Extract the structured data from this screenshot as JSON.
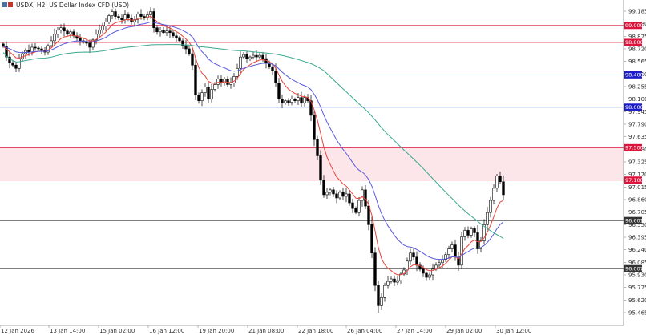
{
  "header": {
    "symbol_title": "USDX, H2:  US Dollar Index CFD (USD)"
  },
  "chart_data": {
    "type": "candlestick",
    "symbol": "USDX",
    "timeframe": "H2",
    "description": "US Dollar Index CFD (USD)",
    "ylim": [
      95.36,
      99.25
    ],
    "y_ticks": [
      "99.185",
      "99.030",
      "98.875",
      "98.720",
      "98.565",
      "98.410",
      "98.255",
      "98.100",
      "97.945",
      "97.790",
      "97.635",
      "97.480",
      "97.325",
      "97.170",
      "97.015",
      "96.860",
      "96.705",
      "96.550",
      "96.395",
      "96.240",
      "96.085",
      "95.930",
      "95.775",
      "95.620",
      "95.465"
    ],
    "x_ticks": [
      "12 Jan 2026",
      "13 Jan 14:00",
      "15 Jan 02:00",
      "16 Jan 12:00",
      "19 Jan 20:00",
      "21 Jan 08:00",
      "22 Jan 18:00",
      "26 Jan 04:00",
      "27 Jan 14:00",
      "29 Jan 02:00",
      "30 Jan 12:00"
    ],
    "zones": [
      {
        "from": 97.1,
        "to": 97.5,
        "color": "#fde6ea"
      }
    ],
    "levels": [
      {
        "price": 99.009,
        "label": "99.009",
        "color": "#dc143c"
      },
      {
        "price": 98.8,
        "label": "98.800",
        "color": "#dc143c"
      },
      {
        "price": 98.4,
        "label": "98.400",
        "color": "#1c1cc8"
      },
      {
        "price": 98.0,
        "label": "98.000",
        "color": "#1c1cc8"
      },
      {
        "price": 97.5,
        "label": "97.500",
        "color": "#dc143c"
      },
      {
        "price": 97.1,
        "label": "97.100",
        "color": "#dc143c"
      },
      {
        "price": 96.601,
        "label": "96.601",
        "color": "#333333"
      },
      {
        "price": 96.007,
        "label": "96.007",
        "color": "#333333"
      }
    ],
    "ma_colors": {
      "fast": "#e8443a",
      "medium": "#5a5adc",
      "slow": "#3aa890"
    },
    "closes": [
      98.75,
      98.62,
      98.55,
      98.52,
      98.48,
      98.6,
      98.66,
      98.7,
      98.68,
      98.74,
      98.73,
      98.72,
      98.7,
      98.68,
      98.76,
      98.82,
      98.9,
      98.95,
      98.98,
      98.94,
      98.9,
      98.93,
      98.88,
      98.85,
      98.82,
      98.8,
      98.79,
      98.74,
      98.83,
      98.9,
      98.95,
      99.0,
      99.05,
      99.13,
      99.18,
      99.12,
      99.1,
      99.08,
      99.14,
      99.1,
      99.05,
      99.08,
      99.15,
      99.12,
      99.1,
      99.14,
      99.18,
      98.98,
      98.93,
      98.95,
      98.92,
      98.94,
      98.92,
      98.88,
      98.86,
      98.82,
      98.76,
      98.72,
      98.66,
      98.52,
      98.15,
      98.08,
      98.18,
      98.25,
      98.1,
      98.22,
      98.28,
      98.35,
      98.3,
      98.35,
      98.28,
      98.3,
      98.38,
      98.48,
      98.62,
      98.65,
      98.6,
      98.62,
      98.64,
      98.62,
      98.64,
      98.6,
      98.55,
      98.5,
      98.45,
      98.3,
      98.1,
      98.05,
      98.08,
      98.06,
      98.1,
      98.08,
      98.12,
      98.05,
      98.12,
      98.08,
      97.9,
      97.6,
      97.4,
      97.1,
      96.92,
      96.95,
      96.98,
      96.93,
      96.88,
      96.95,
      96.9,
      96.93,
      96.82,
      96.75,
      96.7,
      96.85,
      96.98,
      96.78,
      96.55,
      96.2,
      95.8,
      95.55,
      95.65,
      95.8,
      95.85,
      95.88,
      95.84,
      95.86,
      95.94,
      95.99,
      96.1,
      96.2,
      96.15,
      96.05,
      96.0,
      95.95,
      95.9,
      95.93,
      96.0,
      96.05,
      96.08,
      96.12,
      96.18,
      96.25,
      96.3,
      96.15,
      96.05,
      96.4,
      96.48,
      96.42,
      96.5,
      96.45,
      96.25,
      96.35,
      96.55,
      96.7,
      96.85,
      97.0,
      97.15,
      97.08,
      96.92
    ]
  }
}
